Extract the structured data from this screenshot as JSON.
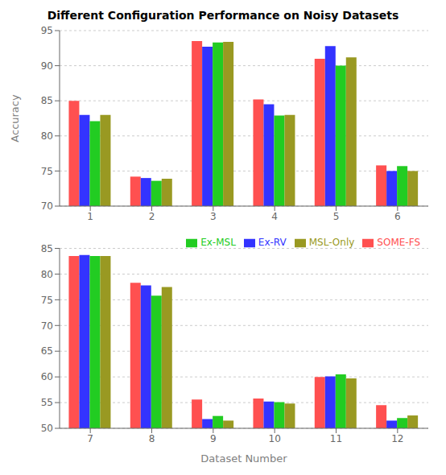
{
  "chart_data": [
    {
      "type": "bar",
      "title": "Different Configuration Performance on Noisy Datasets",
      "ylabel": "Accuracy",
      "categories": [
        "1",
        "2",
        "3",
        "4",
        "5",
        "6"
      ],
      "series": [
        {
          "name": "SOME-FS",
          "color": "#FF5050",
          "values": [
            85.0,
            74.2,
            93.5,
            85.2,
            91.0,
            75.8
          ]
        },
        {
          "name": "Ex-RV",
          "color": "#3333FF",
          "values": [
            83.0,
            74.0,
            92.7,
            84.5,
            92.8,
            75.0
          ]
        },
        {
          "name": "Ex-MSL",
          "color": "#22CC22",
          "values": [
            82.1,
            73.6,
            93.3,
            82.9,
            90.0,
            75.7
          ]
        },
        {
          "name": "MSL-Only",
          "color": "#999922",
          "values": [
            83.0,
            73.9,
            93.4,
            83.0,
            91.2,
            75.0
          ]
        }
      ],
      "ylim": [
        70,
        95
      ],
      "yticks": [
        70,
        75,
        80,
        85,
        90,
        95
      ],
      "grid": true
    },
    {
      "type": "bar",
      "xlabel": "Dataset Number",
      "categories": [
        "7",
        "8",
        "9",
        "10",
        "11",
        "12"
      ],
      "series": [
        {
          "name": "SOME-FS",
          "color": "#FF5050",
          "values": [
            83.5,
            78.3,
            55.6,
            55.8,
            60.0,
            54.5
          ]
        },
        {
          "name": "Ex-RV",
          "color": "#3333FF",
          "values": [
            83.7,
            77.8,
            51.8,
            55.2,
            60.1,
            51.5
          ]
        },
        {
          "name": "Ex-MSL",
          "color": "#22CC22",
          "values": [
            83.5,
            75.8,
            52.4,
            55.1,
            60.5,
            52.0
          ]
        },
        {
          "name": "MSL-Only",
          "color": "#999922",
          "values": [
            83.5,
            77.5,
            51.5,
            54.8,
            59.7,
            52.5
          ]
        }
      ],
      "ylim": [
        50,
        85
      ],
      "yticks": [
        50,
        55,
        60,
        65,
        70,
        75,
        80,
        85
      ],
      "grid": true,
      "legend": "upper right"
    }
  ]
}
